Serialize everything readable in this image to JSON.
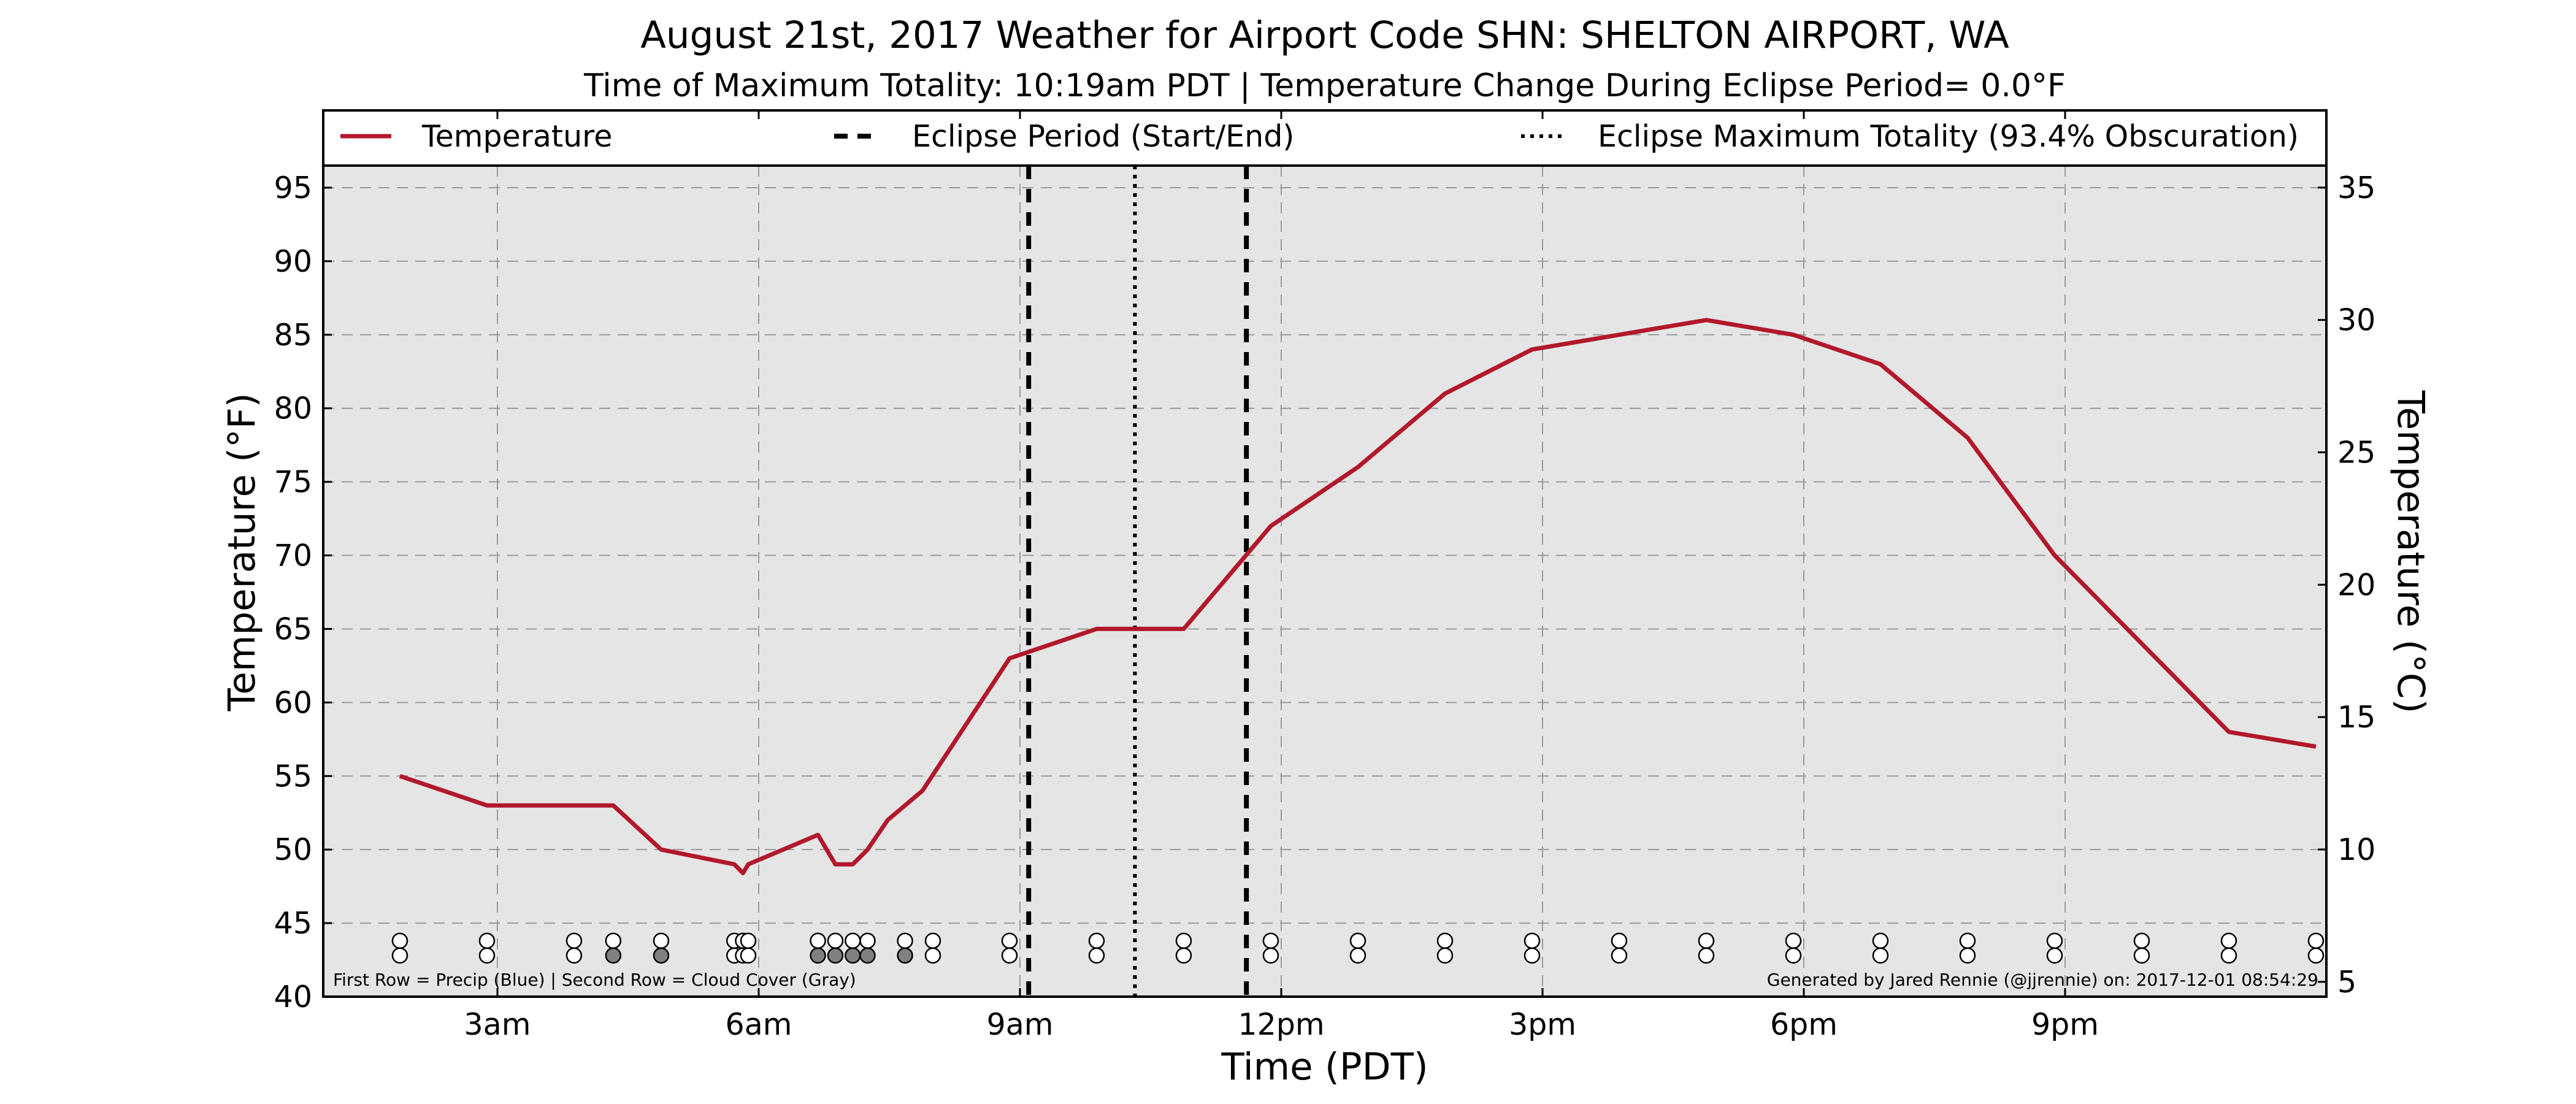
{
  "chart_data": {
    "type": "line",
    "title": "August 21st, 2017 Weather for Airport Code SHN: SHELTON AIRPORT, WA",
    "subtitle": "Time of Maximum Totality: 10:19am PDT | Temperature Change During Eclipse Period= 0.0°F",
    "xlabel": "Time (PDT)",
    "ylabel": "Temperature (°F)",
    "ylabel_right": "Temperature (°C)",
    "xlim": [
      1.0,
      24.0
    ],
    "ylim": [
      40,
      96.5
    ],
    "ylim_right": [
      4.44,
      35.83
    ],
    "x_ticks": [
      3,
      6,
      9,
      12,
      15,
      18,
      21
    ],
    "x_tick_labels": [
      "3am",
      "6am",
      "9am",
      "12pm",
      "3pm",
      "6pm",
      "9pm"
    ],
    "y_ticks": [
      40,
      45,
      50,
      55,
      60,
      65,
      70,
      75,
      80,
      85,
      90,
      95
    ],
    "y_tick_labels": [
      "40",
      "45",
      "50",
      "55",
      "60",
      "65",
      "70",
      "75",
      "80",
      "85",
      "90",
      "95"
    ],
    "y_right_ticks": [
      5,
      10,
      15,
      20,
      25,
      30,
      35
    ],
    "y_right_tick_labels": [
      "5",
      "10",
      "15",
      "20",
      "25",
      "30",
      "35"
    ],
    "grid": true,
    "legend_placement": "top",
    "series": [
      {
        "name": "Temperature",
        "color": "#b2182b",
        "x": [
          1.88,
          2.88,
          4.33,
          4.88,
          5.72,
          5.82,
          5.88,
          6.68,
          6.88,
          7.08,
          7.25,
          7.48,
          7.88,
          8.88,
          9.88,
          10.88,
          11.88,
          12.88,
          13.88,
          14.88,
          15.88,
          16.88,
          17.88,
          18.88,
          19.88,
          20.88,
          21.88,
          22.88,
          23.88
        ],
        "y": [
          55,
          53,
          53,
          50,
          49,
          48.4,
          49,
          51,
          49,
          49,
          50,
          52,
          54,
          63,
          65,
          65,
          72,
          76,
          81,
          84,
          85,
          86,
          85,
          83,
          78,
          70,
          64,
          58,
          57
        ]
      }
    ],
    "eclipse_period": {
      "name": "Eclipse Period (Start/End)",
      "start": 9.1,
      "end": 11.6
    },
    "eclipse_max": {
      "name": "Eclipse Maximum Totality (93.4% Obscuration)",
      "x": 10.32
    },
    "indicators": {
      "x": [
        1.88,
        2.88,
        3.88,
        4.33,
        4.88,
        5.72,
        5.82,
        5.88,
        6.68,
        6.88,
        7.08,
        7.25,
        7.68,
        8.0,
        8.88,
        9.88,
        10.88,
        11.88,
        12.88,
        13.88,
        14.88,
        15.88,
        16.88,
        17.88,
        18.88,
        19.88,
        20.88,
        21.88,
        22.88,
        23.88
      ],
      "precip_fill": [
        "white",
        "white",
        "white",
        "white",
        "white",
        "white",
        "white",
        "white",
        "white",
        "white",
        "white",
        "white",
        "white",
        "white",
        "white",
        "white",
        "white",
        "white",
        "white",
        "white",
        "white",
        "white",
        "white",
        "white",
        "white",
        "white",
        "white",
        "white",
        "white",
        "white"
      ],
      "cloud_fill": [
        "white",
        "white",
        "white",
        "gray",
        "gray",
        "white",
        "white",
        "white",
        "gray",
        "gray",
        "gray",
        "gray",
        "gray",
        "white",
        "white",
        "white",
        "white",
        "white",
        "white",
        "white",
        "white",
        "white",
        "white",
        "white",
        "white",
        "white",
        "white",
        "white",
        "white",
        "white"
      ],
      "precip_level": 43.8,
      "cloud_level": 42.8
    },
    "footnote_left": "First Row = Precip (Blue) | Second Row = Cloud Cover (Gray)",
    "footnote_right": "Generated by Jared Rennie (@jjrennie) on: 2017-12-01 08:54:29"
  }
}
